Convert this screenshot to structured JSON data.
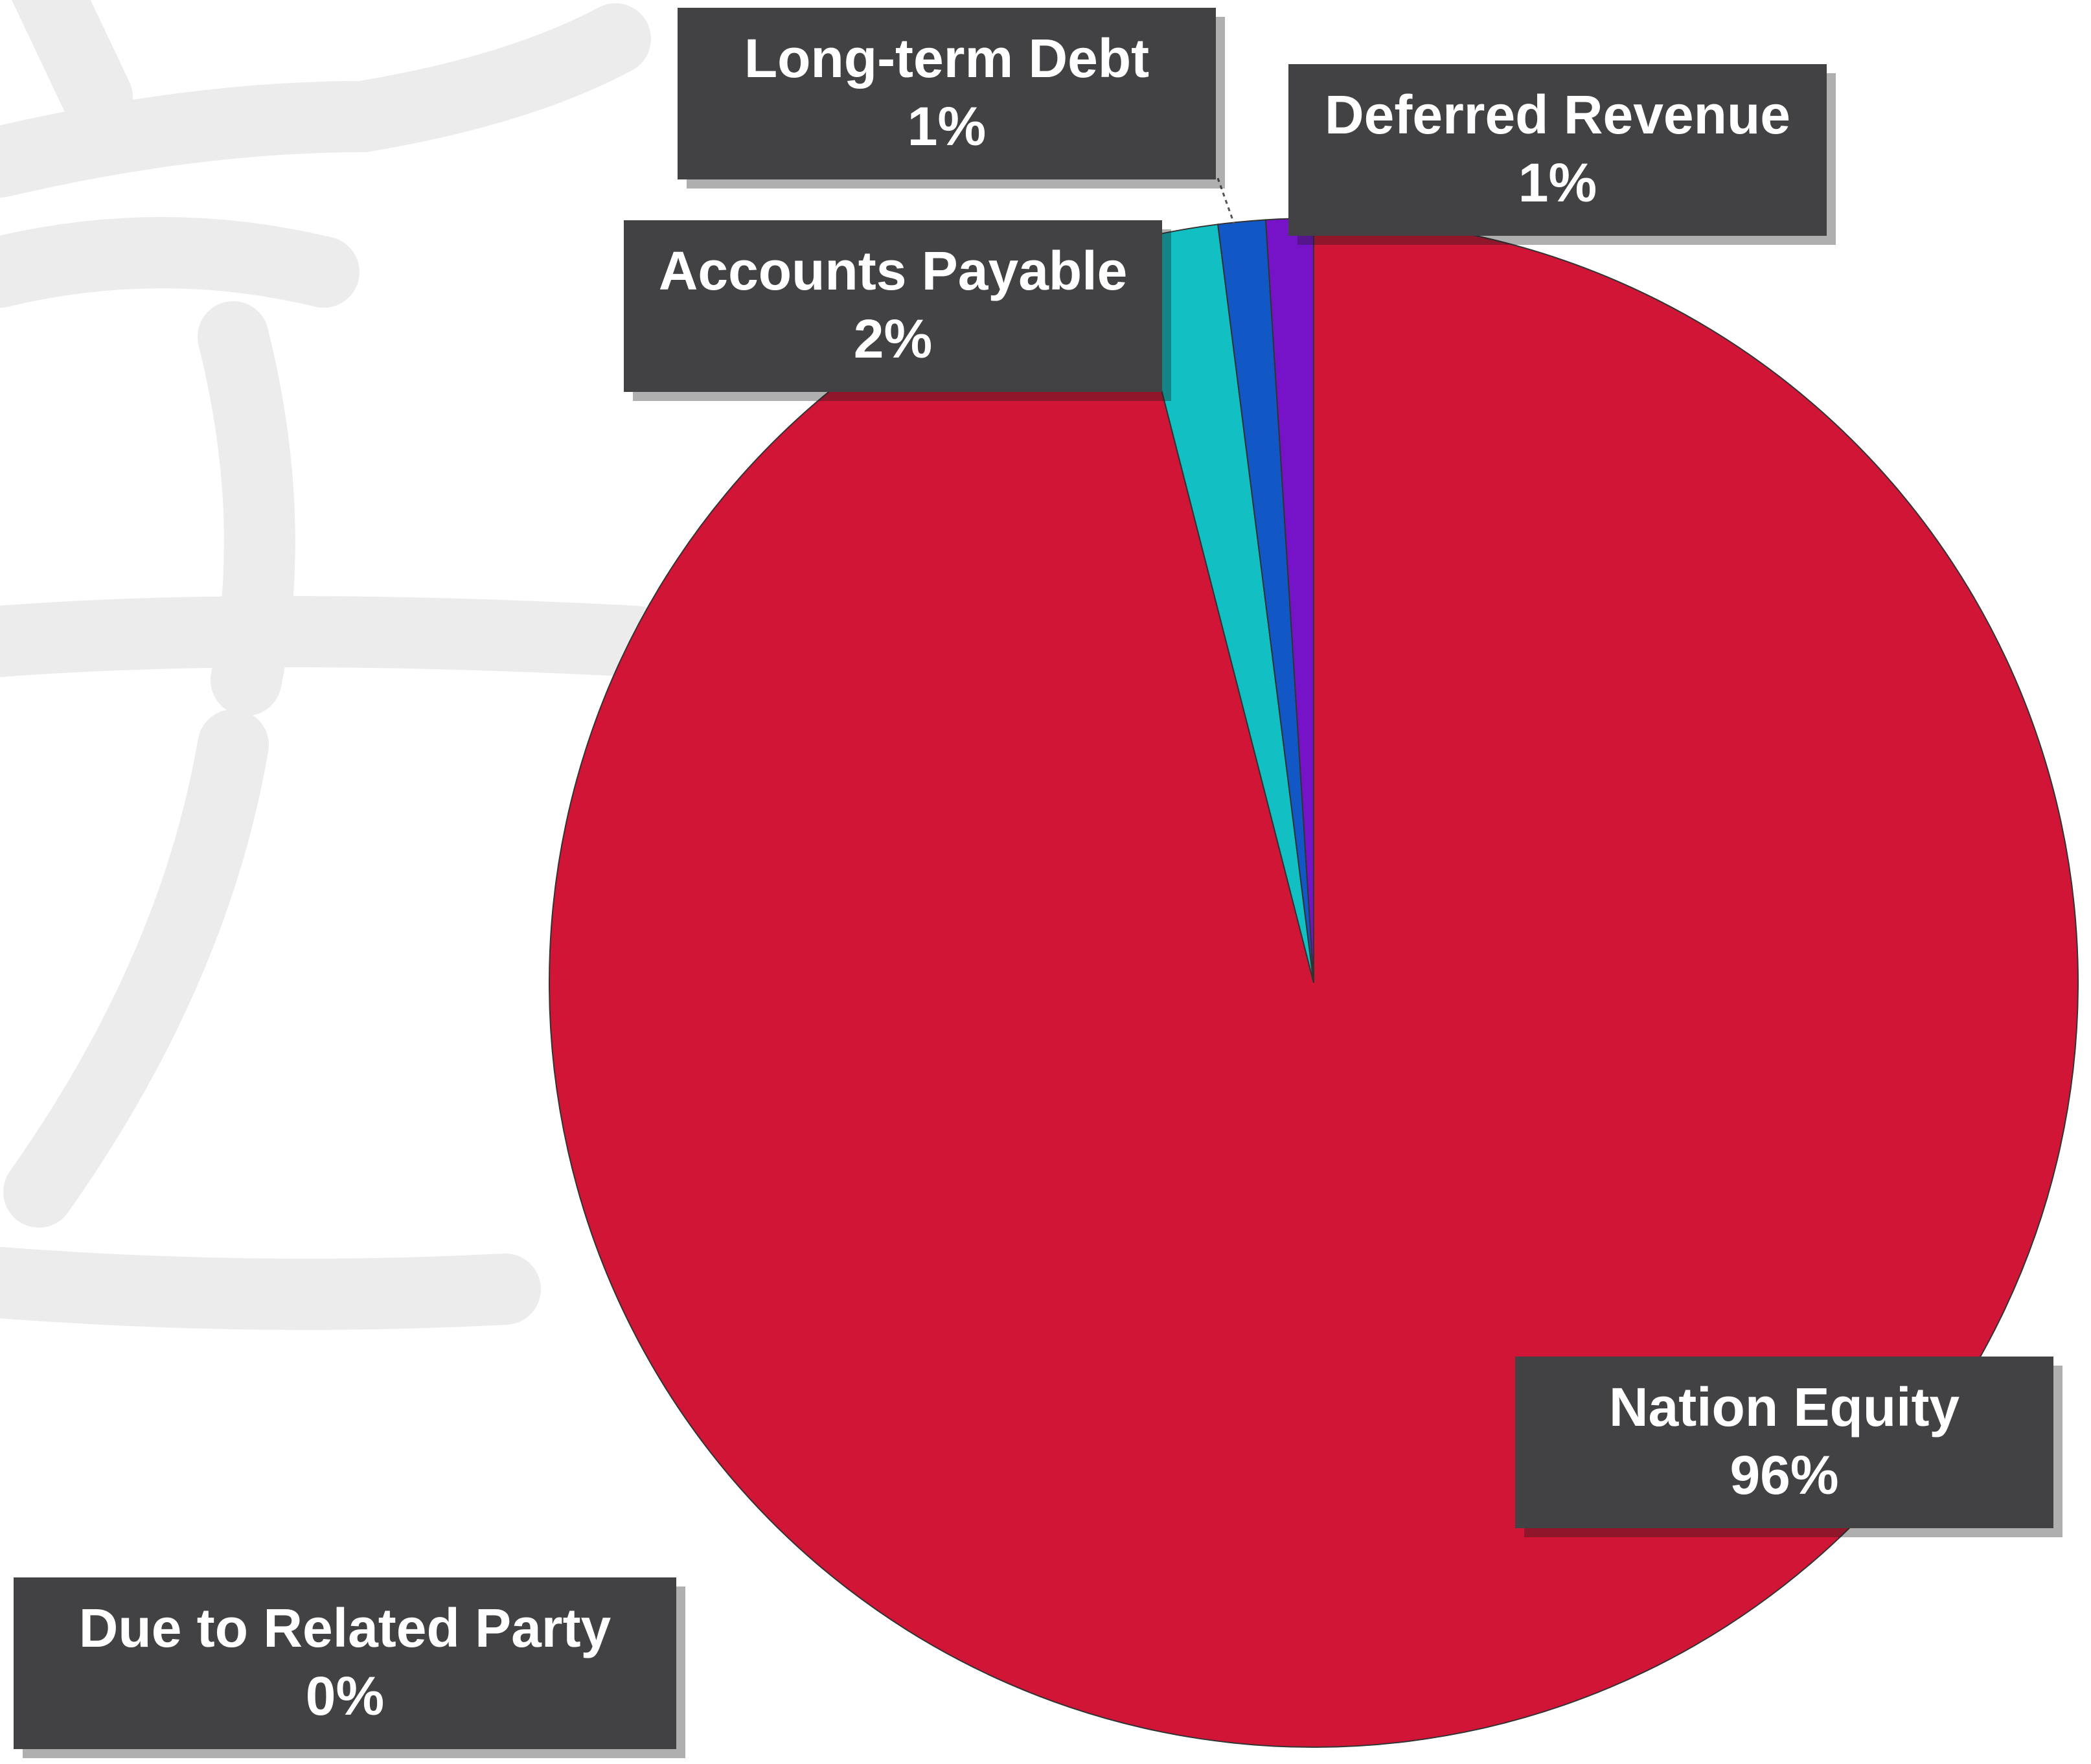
{
  "chart_data": {
    "type": "pie",
    "categories": [
      "Nation Equity",
      "Due to Related Party",
      "Accounts Payable",
      "Long-term Debt",
      "Deferred Revenue"
    ],
    "values": [
      96,
      0,
      2,
      1,
      1
    ],
    "value_labels": [
      "96%",
      "0%",
      "2%",
      "1%",
      "1%"
    ],
    "colors": [
      "#d01537",
      "#e07b22",
      "#12bfc2",
      "#1257c6",
      "#7613c9"
    ]
  }
}
